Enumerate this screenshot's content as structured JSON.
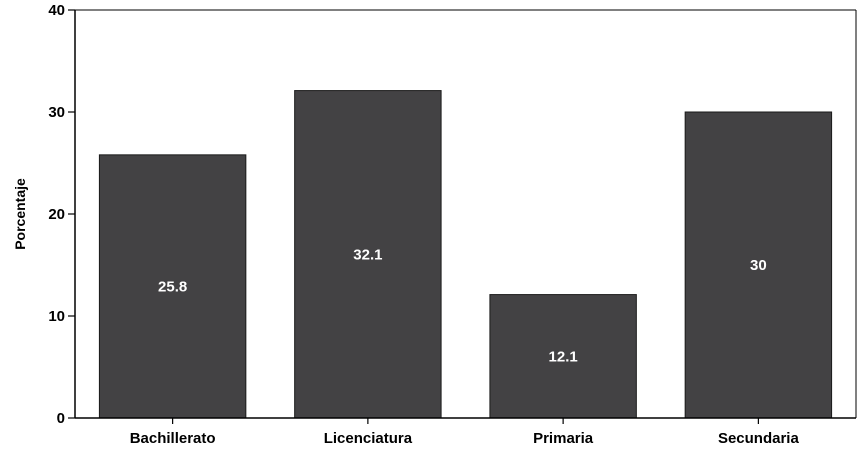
{
  "chart_data": {
    "type": "bar",
    "title": "",
    "xlabel": "",
    "ylabel": "Porcentaje",
    "categories": [
      "Bachillerato",
      "Licenciatura",
      "Primaria",
      "Secundaria"
    ],
    "values": [
      25.8,
      32.1,
      12.1,
      30
    ],
    "value_labels": [
      "25.8",
      "32.1",
      "12.1",
      "30"
    ],
    "ylim": [
      0,
      40
    ],
    "yticks": [
      0,
      10,
      20,
      30,
      40
    ],
    "grid": false,
    "legend": "none",
    "colors": {
      "bar_fill": "#434244",
      "bar_stroke": "#1a1a1a",
      "value_label": "#ffffff",
      "axis": "#000000"
    }
  }
}
